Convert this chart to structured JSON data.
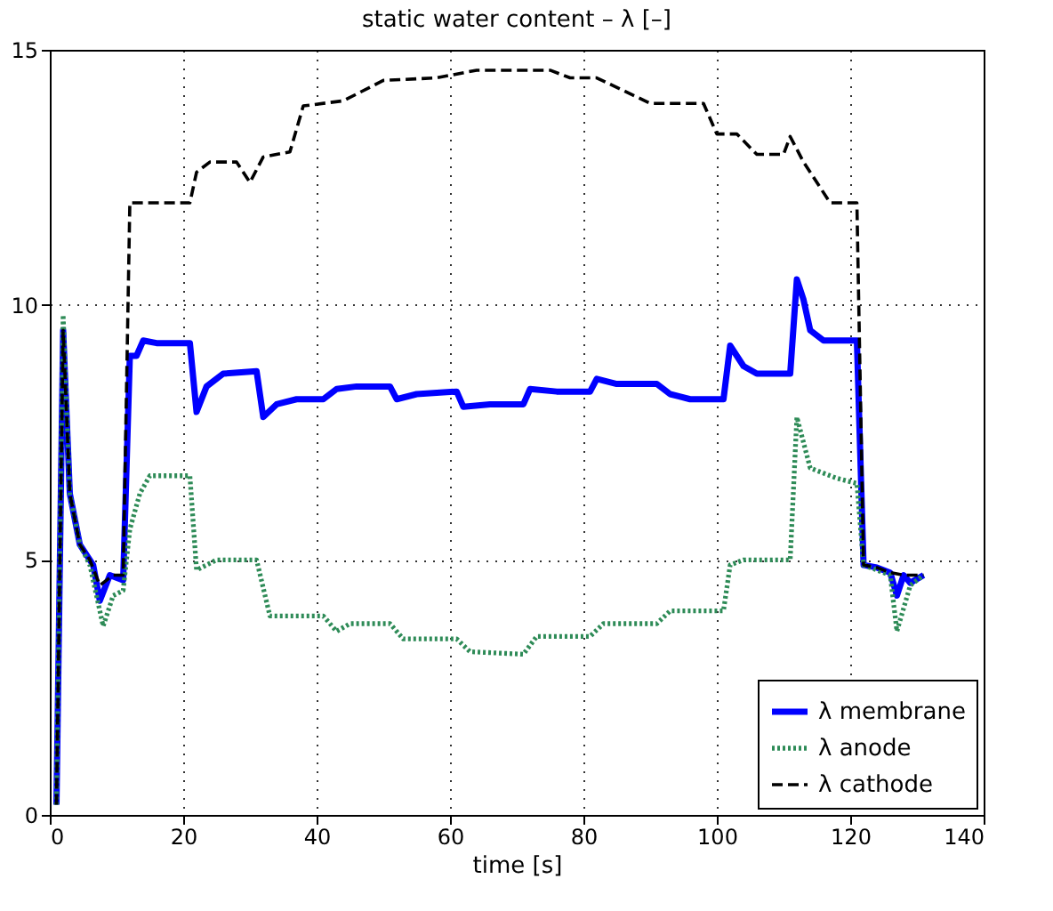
{
  "chart_data": {
    "type": "line",
    "title": "static water content – λ [–]",
    "xlabel": "time [s]",
    "xlim": [
      0,
      140
    ],
    "xticks": [
      0,
      20,
      40,
      60,
      80,
      100,
      120,
      140
    ],
    "ylim": [
      0,
      15
    ],
    "yticks": [
      0,
      5,
      10,
      15
    ],
    "grid": true,
    "legend": "bottom right",
    "marker": "none",
    "series": [
      {
        "name": "λ membrane",
        "color": "#0000ff",
        "line_style": "solid",
        "x": [
          1,
          2,
          3,
          4.5,
          6,
          6.5,
          7.5,
          9,
          11,
          12,
          13,
          14,
          16,
          21,
          22,
          23.5,
          26,
          31,
          32,
          34,
          37,
          41,
          43,
          46,
          51,
          52,
          55,
          61,
          62,
          66,
          71,
          72,
          76,
          81,
          82,
          85,
          91,
          93,
          96,
          101,
          102,
          104,
          106,
          111,
          112,
          113,
          114,
          116,
          121,
          122,
          124,
          126,
          127,
          128,
          129,
          131
        ],
        "values": [
          0.2,
          9.5,
          6.3,
          5.3,
          5.0,
          4.9,
          4.2,
          4.7,
          4.6,
          9.0,
          9.0,
          9.3,
          9.25,
          9.25,
          7.9,
          8.4,
          8.65,
          8.7,
          7.8,
          8.05,
          8.15,
          8.15,
          8.35,
          8.4,
          8.4,
          8.15,
          8.25,
          8.3,
          8.0,
          8.05,
          8.05,
          8.35,
          8.3,
          8.3,
          8.55,
          8.45,
          8.45,
          8.25,
          8.15,
          8.15,
          9.2,
          8.8,
          8.65,
          8.65,
          10.5,
          10.1,
          9.5,
          9.3,
          9.3,
          4.9,
          4.85,
          4.75,
          4.3,
          4.7,
          4.55,
          4.7
        ]
      },
      {
        "name": "λ anode",
        "color": "#2e8b57",
        "line_style": "dotted",
        "x": [
          1,
          2,
          3,
          4.5,
          6,
          7.5,
          8,
          9.5,
          11,
          12,
          13.5,
          15,
          21,
          22,
          25,
          31,
          33,
          41,
          43,
          45,
          51,
          53,
          61,
          63,
          71,
          73,
          81,
          83,
          91,
          93,
          101,
          102,
          104,
          111,
          112,
          114,
          118,
          121,
          122,
          126,
          127,
          129,
          131
        ],
        "values": [
          0.2,
          9.8,
          6.3,
          5.3,
          4.9,
          4.0,
          3.7,
          4.3,
          4.4,
          5.6,
          6.3,
          6.65,
          6.65,
          4.8,
          5.0,
          5.0,
          3.9,
          3.9,
          3.6,
          3.75,
          3.75,
          3.45,
          3.45,
          3.2,
          3.15,
          3.5,
          3.5,
          3.75,
          3.75,
          4.0,
          4.0,
          4.9,
          5.0,
          5.0,
          7.8,
          6.8,
          6.6,
          6.5,
          4.9,
          4.7,
          3.6,
          4.5,
          4.7
        ]
      },
      {
        "name": "λ cathode",
        "color": "#000000",
        "line_style": "dashed",
        "x": [
          1,
          2,
          3,
          4.5,
          6,
          7.5,
          9.5,
          11,
          12,
          21,
          22,
          24,
          28,
          30,
          32,
          36,
          38,
          44,
          50,
          58,
          64,
          75,
          78,
          82,
          86,
          90,
          98,
          100,
          103,
          106,
          110,
          111,
          113,
          117,
          121,
          122,
          124,
          126,
          128,
          131
        ],
        "values": [
          0.2,
          9.5,
          6.3,
          5.3,
          5.0,
          4.5,
          4.7,
          4.7,
          12.0,
          12.0,
          12.6,
          12.8,
          12.8,
          12.4,
          12.9,
          13.0,
          13.9,
          14.0,
          14.4,
          14.45,
          14.6,
          14.6,
          14.45,
          14.45,
          14.2,
          13.95,
          13.95,
          13.35,
          13.35,
          12.95,
          12.95,
          13.3,
          12.8,
          12.0,
          12.0,
          4.9,
          4.85,
          4.75,
          4.7,
          4.7
        ]
      }
    ]
  }
}
